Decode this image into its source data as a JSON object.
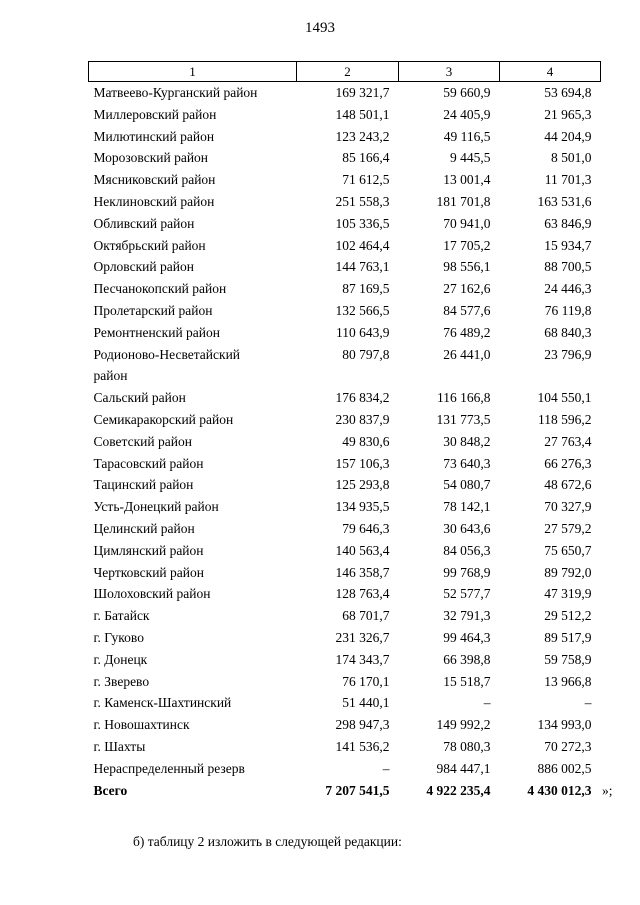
{
  "page": {
    "number": "1493",
    "after_total_suffix": "»;",
    "footer_note": "б) таблицу 2 изложить в следующей редакции:"
  },
  "table": {
    "headers": [
      "1",
      "2",
      "3",
      "4"
    ],
    "rows": [
      [
        "Матвеево-Курганский район",
        "169 321,7",
        "59 660,9",
        "53 694,8"
      ],
      [
        "Миллеровский район",
        "148 501,1",
        "24 405,9",
        "21 965,3"
      ],
      [
        "Милютинский район",
        "123 243,2",
        "49 116,5",
        "44 204,9"
      ],
      [
        "Морозовский район",
        "85 166,4",
        "9 445,5",
        "8 501,0"
      ],
      [
        "Мясниковский район",
        "71 612,5",
        "13 001,4",
        "11 701,3"
      ],
      [
        "Неклиновский район",
        "251 558,3",
        "181 701,8",
        "163 531,6"
      ],
      [
        "Обливский район",
        "105 336,5",
        "70 941,0",
        "63 846,9"
      ],
      [
        "Октябрьский район",
        "102 464,4",
        "17 705,2",
        "15 934,7"
      ],
      [
        "Орловский район",
        "144 763,1",
        "98 556,1",
        "88 700,5"
      ],
      [
        "Песчанокопский район",
        "87 169,5",
        "27 162,6",
        "24 446,3"
      ],
      [
        "Пролетарский район",
        "132 566,5",
        "84 577,6",
        "76 119,8"
      ],
      [
        "Ремонтненский район",
        "110 643,9",
        "76 489,2",
        "68 840,3"
      ],
      [
        "Родионово-Несветайский\nрайон",
        "80 797,8",
        "26 441,0",
        "23 796,9"
      ],
      [
        "Сальский район",
        "176 834,2",
        "116 166,8",
        "104 550,1"
      ],
      [
        "Семикаракорский район",
        "230 837,9",
        "131 773,5",
        "118 596,2"
      ],
      [
        "Советский район",
        "49 830,6",
        "30 848,2",
        "27 763,4"
      ],
      [
        "Тарасовский район",
        "157 106,3",
        "73 640,3",
        "66 276,3"
      ],
      [
        "Тацинский район",
        "125 293,8",
        "54 080,7",
        "48 672,6"
      ],
      [
        "Усть-Донецкий район",
        "134 935,5",
        "78 142,1",
        "70 327,9"
      ],
      [
        "Целинский район",
        "79 646,3",
        "30 643,6",
        "27 579,2"
      ],
      [
        "Цимлянский район",
        "140 563,4",
        "84 056,3",
        "75 650,7"
      ],
      [
        "Чертковский район",
        "146 358,7",
        "99 768,9",
        "89 792,0"
      ],
      [
        "Шолоховский район",
        "128 763,4",
        "52 577,7",
        "47 319,9"
      ],
      [
        "г. Батайск",
        "68 701,7",
        "32 791,3",
        "29 512,2"
      ],
      [
        "г. Гуково",
        "231 326,7",
        "99 464,3",
        "89 517,9"
      ],
      [
        "г. Донецк",
        "174 343,7",
        "66 398,8",
        "59 758,9"
      ],
      [
        "г. Зверево",
        "76 170,1",
        "15 518,7",
        "13 966,8"
      ],
      [
        "г. Каменск-Шахтинский",
        "51 440,1",
        "–",
        "–"
      ],
      [
        "г. Новошахтинск",
        "298 947,3",
        "149 992,2",
        "134 993,0"
      ],
      [
        "г. Шахты",
        "141 536,2",
        "78 080,3",
        "70 272,3"
      ],
      [
        "Нераспределенный резерв",
        "–",
        "984 447,1",
        "886 002,5"
      ]
    ],
    "total": [
      "Всего",
      "7 207 541,5",
      "4 922 235,4",
      "4 430 012,3"
    ]
  }
}
